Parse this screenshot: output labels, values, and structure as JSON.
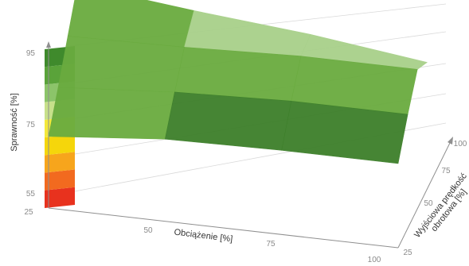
{
  "chart_data": {
    "type": "surface-3d",
    "title": "",
    "ylabel": "Sprawność [%]",
    "xlabel": "Obciążenie [%]",
    "zlabel": "Wyjściowa prędkość obrotowa [%]",
    "x_ticks": [
      "25",
      "50",
      "75",
      "100"
    ],
    "y_ticks": [
      "55",
      "75",
      "95"
    ],
    "z_ticks": [
      "25",
      "50",
      "75",
      "100"
    ],
    "x": [
      25,
      50,
      75,
      100
    ],
    "z": [
      25,
      50,
      75,
      100
    ],
    "values": [
      [
        89,
        94,
        95,
        95
      ],
      [
        88,
        92,
        94,
        94
      ],
      [
        88,
        89,
        91,
        91
      ],
      [
        88,
        82,
        77,
        70
      ]
    ],
    "ylim": [
      55,
      95
    ],
    "colors": {
      "surface_light": "#a8d08a",
      "surface_mid": "#6aab3f",
      "surface_dark": "#3d7f2a",
      "scale": [
        "#e8321e",
        "#f26a1f",
        "#f7a51c",
        "#f5d60b",
        "#f3e83a",
        "#c7e08a",
        "#8cc46a",
        "#5aa33a",
        "#3f8a2c"
      ]
    }
  }
}
